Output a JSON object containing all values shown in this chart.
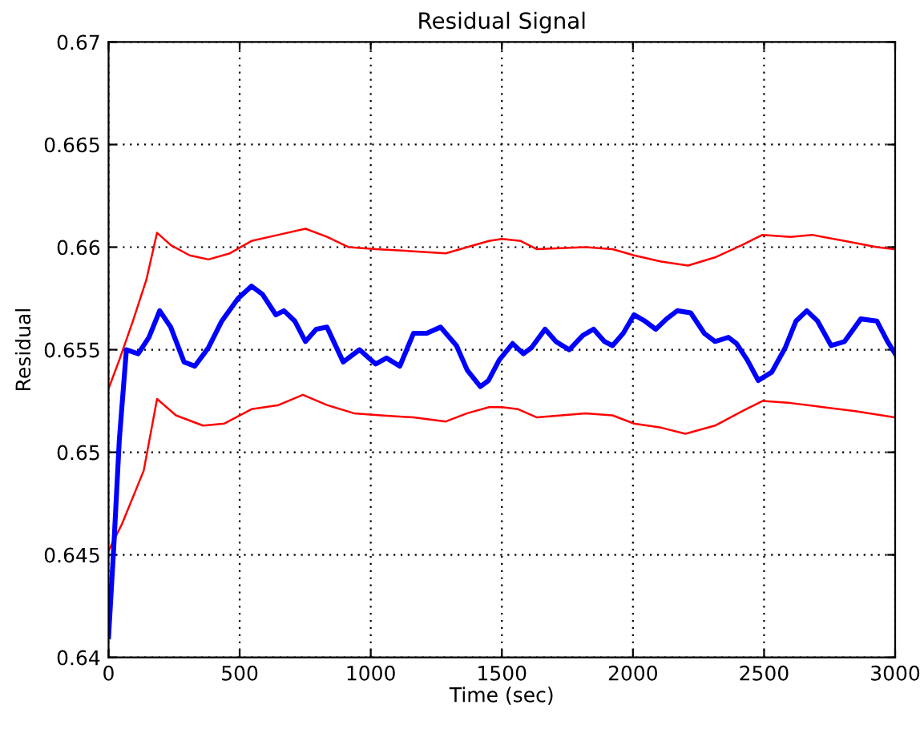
{
  "chart_data": {
    "type": "line",
    "title": "Residual Signal",
    "xlabel": "Time (sec)",
    "ylabel": "Residual",
    "xlim": [
      0,
      3000
    ],
    "ylim": [
      0.64,
      0.67
    ],
    "xticks": [
      0,
      500,
      1000,
      1500,
      2000,
      2500,
      3000
    ],
    "yticks": [
      0.64,
      0.645,
      0.65,
      0.655,
      0.66,
      0.665,
      0.67
    ],
    "grid": true,
    "line_style": "solid",
    "marker": "none",
    "series": [
      {
        "color": "#ff0000",
        "x": [
          0,
          41,
          93,
          144,
          185,
          237,
          309,
          381,
          463,
          545,
          648,
          751,
          833,
          916,
          1019,
          1163,
          1286,
          1368,
          1451,
          1500,
          1572,
          1634,
          1819,
          1922,
          2004,
          2107,
          2210,
          2313,
          2416,
          2494,
          2601,
          2683,
          2807,
          2930,
          3000
        ],
        "values": [
          0.6531,
          0.6545,
          0.6564,
          0.6584,
          0.6607,
          0.6601,
          0.6596,
          0.6594,
          0.6597,
          0.6603,
          0.6606,
          0.6609,
          0.6605,
          0.66,
          0.6599,
          0.6598,
          0.6597,
          0.66,
          0.6603,
          0.6604,
          0.6603,
          0.6599,
          0.66,
          0.6599,
          0.6596,
          0.6593,
          0.6591,
          0.6595,
          0.6601,
          0.6606,
          0.6605,
          0.6606,
          0.6603,
          0.66,
          0.6599
        ]
      },
      {
        "color": "#ff0000",
        "x": [
          0,
          51,
          134,
          185,
          257,
          360,
          442,
          545,
          648,
          741,
          833,
          936,
          1039,
          1163,
          1286,
          1368,
          1451,
          1500,
          1562,
          1634,
          1819,
          1922,
          2004,
          2107,
          2200,
          2313,
          2416,
          2494,
          2601,
          2725,
          2848,
          3000
        ],
        "values": [
          0.6452,
          0.6465,
          0.6491,
          0.6526,
          0.6518,
          0.6513,
          0.6514,
          0.6521,
          0.6523,
          0.6528,
          0.6523,
          0.6519,
          0.6518,
          0.6517,
          0.6515,
          0.6519,
          0.6522,
          0.6522,
          0.6521,
          0.6517,
          0.6519,
          0.6518,
          0.6514,
          0.6512,
          0.6509,
          0.6513,
          0.652,
          0.6525,
          0.6524,
          0.6522,
          0.652,
          0.6517
        ]
      },
      {
        "color": "#0000ff",
        "x": [
          0,
          20,
          41,
          68,
          113,
          154,
          195,
          237,
          288,
          329,
          381,
          432,
          494,
          545,
          587,
          638,
          669,
          710,
          751,
          792,
          833,
          895,
          957,
          1019,
          1060,
          1111,
          1163,
          1214,
          1266,
          1327,
          1368,
          1418,
          1449,
          1490,
          1541,
          1582,
          1613,
          1665,
          1706,
          1757,
          1809,
          1850,
          1891,
          1922,
          1963,
          2004,
          2045,
          2087,
          2128,
          2169,
          2220,
          2272,
          2313,
          2364,
          2395,
          2436,
          2478,
          2529,
          2581,
          2622,
          2663,
          2704,
          2756,
          2807,
          2869,
          2930,
          2971,
          3000
        ],
        "values": [
          0.641,
          0.6454,
          0.6506,
          0.655,
          0.6548,
          0.6556,
          0.6569,
          0.6561,
          0.6544,
          0.6542,
          0.6551,
          0.6564,
          0.6575,
          0.6581,
          0.6577,
          0.6567,
          0.6569,
          0.6564,
          0.6554,
          0.656,
          0.6561,
          0.6544,
          0.655,
          0.6543,
          0.6546,
          0.6542,
          0.6558,
          0.6558,
          0.6561,
          0.6552,
          0.654,
          0.6532,
          0.6535,
          0.6545,
          0.6553,
          0.6548,
          0.6551,
          0.656,
          0.6554,
          0.655,
          0.6557,
          0.656,
          0.6554,
          0.6552,
          0.6558,
          0.6567,
          0.6564,
          0.656,
          0.6565,
          0.6569,
          0.6568,
          0.6558,
          0.6554,
          0.6556,
          0.6553,
          0.6545,
          0.6535,
          0.6539,
          0.6551,
          0.6564,
          0.6569,
          0.6564,
          0.6552,
          0.6554,
          0.6565,
          0.6564,
          0.6554,
          0.6548
        ]
      }
    ]
  }
}
